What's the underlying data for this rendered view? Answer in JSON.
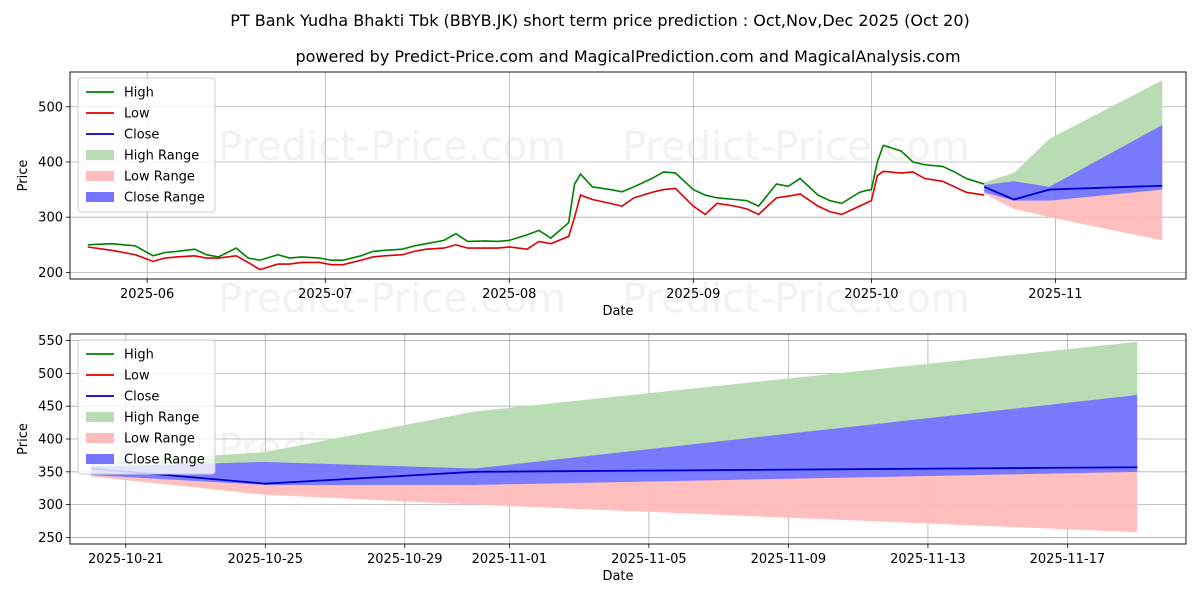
{
  "title": "PT Bank Yudha Bhakti Tbk (BBYB.JK) short term price prediction : Oct,Nov,Dec 2025 (Oct 20)",
  "subtitle": "powered by Predict-Price.com and MagicalPrediction.com and MagicalAnalysis.com",
  "watermark": "Predict-Price.com",
  "colors": {
    "high": "#008000",
    "low": "#e00000",
    "close": "#0000cc",
    "high_range": "#b9dcb4",
    "low_range": "#ffbcbc",
    "close_range": "#7474ff"
  },
  "legend": [
    "High",
    "Low",
    "Close",
    "High Range",
    "Low Range",
    "Close Range"
  ],
  "chart_data": [
    {
      "type": "line",
      "xlabel": "Date",
      "ylabel": "Price",
      "xlim": [
        "2025-05-19",
        "2025-11-23"
      ],
      "ylim": [
        188,
        563
      ],
      "x_ticks": [
        "2025-06",
        "2025-07",
        "2025-08",
        "2025-09",
        "2025-10",
        "2025-11"
      ],
      "x_tick_dates": [
        "2025-06-01",
        "2025-07-01",
        "2025-08-01",
        "2025-09-01",
        "2025-10-01",
        "2025-11-01"
      ],
      "y_ticks": [
        200,
        300,
        400,
        500
      ],
      "history": {
        "dates": [
          "2025-05-22",
          "2025-05-26",
          "2025-05-28",
          "2025-05-30",
          "2025-06-02",
          "2025-06-04",
          "2025-06-06",
          "2025-06-09",
          "2025-06-11",
          "2025-06-13",
          "2025-06-16",
          "2025-06-18",
          "2025-06-20",
          "2025-06-23",
          "2025-06-25",
          "2025-06-27",
          "2025-06-30",
          "2025-07-02",
          "2025-07-04",
          "2025-07-07",
          "2025-07-09",
          "2025-07-11",
          "2025-07-14",
          "2025-07-16",
          "2025-07-18",
          "2025-07-21",
          "2025-07-23",
          "2025-07-25",
          "2025-07-28",
          "2025-07-30",
          "2025-08-01",
          "2025-08-04",
          "2025-08-06",
          "2025-08-08",
          "2025-08-11",
          "2025-08-12",
          "2025-08-13",
          "2025-08-15",
          "2025-08-18",
          "2025-08-20",
          "2025-08-22",
          "2025-08-25",
          "2025-08-27",
          "2025-08-29",
          "2025-09-01",
          "2025-09-03",
          "2025-09-05",
          "2025-09-08",
          "2025-09-10",
          "2025-09-12",
          "2025-09-15",
          "2025-09-17",
          "2025-09-19",
          "2025-09-22",
          "2025-09-24",
          "2025-09-26",
          "2025-09-29",
          "2025-09-30",
          "2025-10-01",
          "2025-10-02",
          "2025-10-03",
          "2025-10-06",
          "2025-10-08",
          "2025-10-10",
          "2025-10-13",
          "2025-10-15",
          "2025-10-17",
          "2025-10-20"
        ],
        "high": [
          250,
          252,
          250,
          248,
          230,
          236,
          238,
          242,
          232,
          228,
          244,
          226,
          222,
          232,
          226,
          228,
          226,
          222,
          222,
          230,
          238,
          240,
          242,
          248,
          252,
          258,
          270,
          256,
          257,
          256,
          258,
          268,
          276,
          262,
          290,
          360,
          378,
          355,
          350,
          346,
          355,
          370,
          382,
          380,
          350,
          340,
          335,
          332,
          330,
          320,
          360,
          356,
          370,
          340,
          330,
          325,
          345,
          348,
          350,
          400,
          430,
          420,
          400,
          395,
          392,
          382,
          370,
          360
        ],
        "low": [
          246,
          240,
          236,
          232,
          220,
          226,
          228,
          230,
          226,
          226,
          230,
          218,
          205,
          215,
          215,
          218,
          218,
          214,
          214,
          222,
          228,
          230,
          232,
          238,
          242,
          244,
          250,
          244,
          244,
          244,
          246,
          242,
          256,
          252,
          265,
          300,
          340,
          332,
          325,
          320,
          335,
          345,
          350,
          352,
          320,
          305,
          325,
          320,
          315,
          305,
          335,
          338,
          342,
          320,
          310,
          305,
          320,
          325,
          330,
          375,
          383,
          380,
          382,
          370,
          365,
          355,
          345,
          340
        ]
      },
      "forecast": {
        "dates": [
          "2025-10-20",
          "2025-10-25",
          "2025-10-31",
          "2025-11-19"
        ],
        "close": [
          355,
          332,
          350,
          357
        ],
        "high_range": [
          [
            357,
            363
          ],
          [
            360,
            380
          ],
          [
            345,
            442
          ],
          [
            350,
            548
          ]
        ],
        "low_range": [
          [
            343,
            345
          ],
          [
            315,
            330
          ],
          [
            300,
            330
          ],
          [
            258,
            355
          ]
        ],
        "close_range": [
          [
            345,
            358
          ],
          [
            330,
            365
          ],
          [
            330,
            355
          ],
          [
            350,
            467
          ]
        ]
      }
    },
    {
      "type": "line",
      "xlabel": "Date",
      "ylabel": "Price",
      "xlim": [
        "2025-10-19.4",
        "2025-11-20.4"
      ],
      "ylim": [
        240,
        560
      ],
      "x_ticks": [
        "2025-10-21",
        "2025-10-25",
        "2025-10-29",
        "2025-11-01",
        "2025-11-05",
        "2025-11-09",
        "2025-11-13",
        "2025-11-17"
      ],
      "y_ticks": [
        250,
        300,
        350,
        400,
        450,
        500,
        550
      ]
    }
  ]
}
